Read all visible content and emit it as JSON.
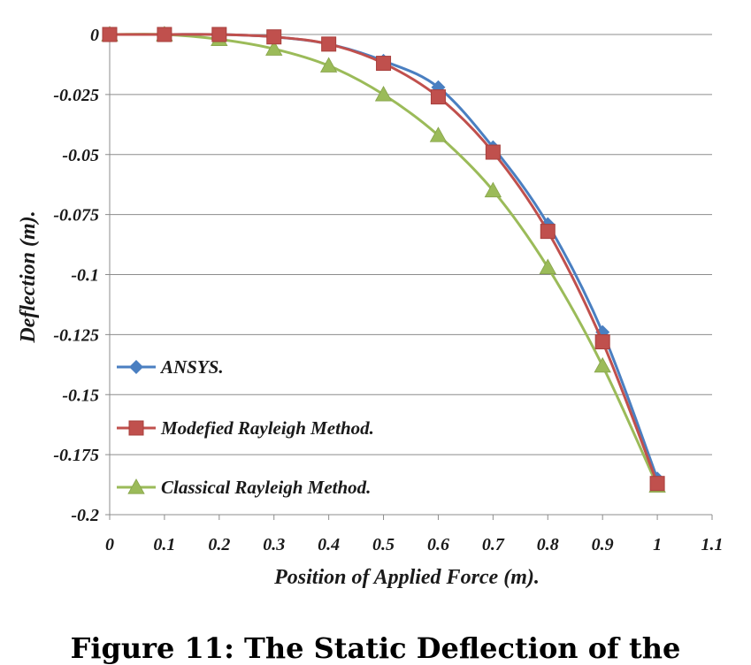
{
  "caption": "Figure 11: The Static Deflection of the",
  "chart_data": {
    "type": "line",
    "xlabel": "Position of Applied Force (m).",
    "ylabel": "Deflection (m).",
    "xlim": [
      0,
      1.1
    ],
    "ylim": [
      -0.2,
      0
    ],
    "x_ticks": [
      "0",
      "0.1",
      "0.2",
      "0.3",
      "0.4",
      "0.5",
      "0.6",
      "0.7",
      "0.8",
      "0.9",
      "1",
      "1.1"
    ],
    "y_ticks": [
      "0",
      "-0.025",
      "-0.05",
      "-0.075",
      "-0.1",
      "-0.125",
      "-0.15",
      "-0.175",
      "-0.2"
    ],
    "grid": "horizontal",
    "legend_position": "lower-left",
    "x": [
      0,
      0.1,
      0.2,
      0.3,
      0.4,
      0.5,
      0.6,
      0.7,
      0.8,
      0.9,
      1.0
    ],
    "series": [
      {
        "name": "ANSYS.",
        "marker": "diamond",
        "color": "#4a7fc1",
        "values": [
          0,
          0,
          0,
          -0.001,
          -0.004,
          -0.011,
          -0.022,
          -0.047,
          -0.079,
          -0.124,
          -0.185
        ]
      },
      {
        "name": "Modefied Rayleigh Method.",
        "marker": "square",
        "color": "#c0504d",
        "values": [
          0,
          0,
          0,
          -0.001,
          -0.004,
          -0.012,
          -0.026,
          -0.049,
          -0.082,
          -0.128,
          -0.187
        ]
      },
      {
        "name": "Classical Rayleigh Method.",
        "marker": "triangle",
        "color": "#9bbb59",
        "values": [
          0,
          0,
          -0.002,
          -0.006,
          -0.013,
          -0.025,
          -0.042,
          -0.065,
          -0.097,
          -0.138,
          -0.188
        ]
      }
    ]
  }
}
